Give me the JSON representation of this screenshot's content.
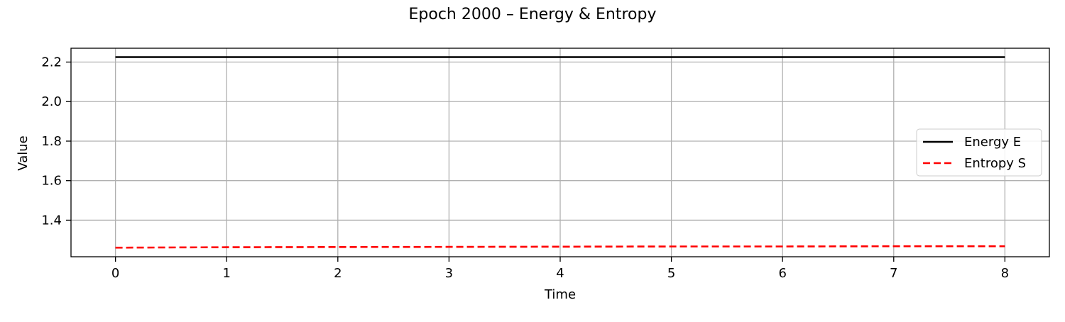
{
  "chart_data": {
    "type": "line",
    "title": "Epoch 2000 – Energy & Entropy",
    "xlabel": "Time",
    "ylabel": "Value",
    "xlim": [
      -0.4,
      8.4
    ],
    "ylim": [
      1.215,
      2.27
    ],
    "xticks": [
      0,
      1,
      2,
      3,
      4,
      5,
      6,
      7,
      8
    ],
    "yticks": [
      1.4,
      1.6,
      1.8,
      2.0,
      2.2
    ],
    "grid": true,
    "legend_position": "center-right",
    "series": [
      {
        "name": "Energy E",
        "color": "#000000",
        "style": "solid",
        "x": [
          0,
          1,
          2,
          3,
          4,
          5,
          6,
          7,
          8
        ],
        "values": [
          2.225,
          2.225,
          2.225,
          2.225,
          2.225,
          2.225,
          2.225,
          2.225,
          2.225
        ]
      },
      {
        "name": "Entropy S",
        "color": "#ff0000",
        "style": "dashed",
        "x": [
          0,
          1,
          2,
          3,
          4,
          5,
          6,
          7,
          8
        ],
        "values": [
          1.261,
          1.263,
          1.264,
          1.265,
          1.266,
          1.267,
          1.267,
          1.268,
          1.268
        ]
      }
    ]
  }
}
